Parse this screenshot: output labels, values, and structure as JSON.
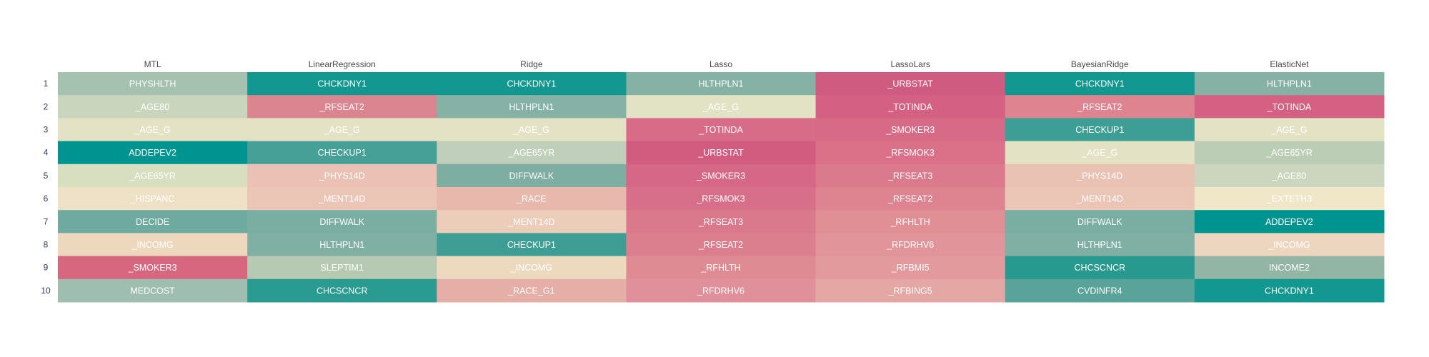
{
  "chart_data": {
    "type": "heatmap",
    "columns": [
      "MTL",
      "LinearRegression",
      "Ridge",
      "Lasso",
      "LassoLars",
      "BayesianRidge",
      "ElasticNet"
    ],
    "rows": [
      "1",
      "2",
      "3",
      "4",
      "5",
      "6",
      "7",
      "8",
      "9",
      "10"
    ],
    "cells": [
      [
        "PHYSHLTH",
        "CHCKDNY1",
        "CHCKDNY1",
        "HLTHPLN1",
        "_URBSTAT",
        "CHCKDNY1",
        "HLTHPLN1"
      ],
      [
        "_AGE80",
        "_RFSEAT2",
        "HLTHPLN1",
        "_AGE_G",
        "_TOTINDA",
        "_RFSEAT2",
        "_TOTINDA"
      ],
      [
        "_AGE_G",
        "_AGE_G",
        "_AGE_G",
        "_TOTINDA",
        "_SMOKER3",
        "CHECKUP1",
        "_AGE_G"
      ],
      [
        "ADDEPEV2",
        "CHECKUP1",
        "_AGE65YR",
        "_URBSTAT",
        "_RFSMOK3",
        "_AGE_G",
        "_AGE65YR"
      ],
      [
        "_AGE65YR",
        "_PHYS14D",
        "DIFFWALK",
        "_SMOKER3",
        "_RFSEAT3",
        "_PHYS14D",
        "_AGE80"
      ],
      [
        "_HISPANC",
        "_MENT14D",
        "_RACE",
        "_RFSMOK3",
        "_RFSEAT2",
        "_MENT14D",
        "_EXTETH3"
      ],
      [
        "DECIDE",
        "DIFFWALK",
        "_MENT14D",
        "_RFSEAT3",
        "_RFHLTH",
        "DIFFWALK",
        "ADDEPEV2"
      ],
      [
        "_INCOMG",
        "HLTHPLN1",
        "CHECKUP1",
        "_RFSEAT2",
        "_RFDRHV6",
        "HLTHPLN1",
        "_INCOMG"
      ],
      [
        "_SMOKER3",
        "SLEPTIM1",
        "_INCOMG",
        "_RFHLTH",
        "_RFBMI5",
        "CHCSCNCR",
        "INCOME2"
      ],
      [
        "MEDCOST",
        "CHCSCNCR",
        "_RACE_G1",
        "_RFDRHV6",
        "_RFBING5",
        "CVDINFR4",
        "CHCKDNY1"
      ]
    ],
    "cell_colors": [
      [
        "#a5c2b0",
        "#139891",
        "#139891",
        "#86b2a5",
        "#cf5b80",
        "#139891",
        "#86b2a5"
      ],
      [
        "#cad5bd",
        "#db8591",
        "#86b2a5",
        "#e2e2c4",
        "#d46183",
        "#dd8490",
        "#d46183"
      ],
      [
        "#e4e2c5",
        "#e4e2c5",
        "#e4e2c5",
        "#d86b88",
        "#d66a87",
        "#3d9e95",
        "#e4e2c5"
      ],
      [
        "#009490",
        "#47a097",
        "#bfcfb9",
        "#d15c80",
        "#da7189",
        "#e4e2c5",
        "#bccdb6"
      ],
      [
        "#d8dfc1",
        "#eac1b4",
        "#7eada1",
        "#d76786",
        "#dc7a8d",
        "#eac2b4",
        "#ccd6be"
      ],
      [
        "#eee1c5",
        "#ebc5b6",
        "#e8b8ad",
        "#d86f8a",
        "#de8390",
        "#ebc6b7",
        "#f0e6c8"
      ],
      [
        "#6eaa9f",
        "#7baea3",
        "#ebcdba",
        "#da788c",
        "#e08f95",
        "#7aaea3",
        "#009490"
      ],
      [
        "#edd8be",
        "#80b0a4",
        "#3e9e95",
        "#db7e8e",
        "#e1959a",
        "#80b0a4",
        "#edd6bf"
      ],
      [
        "#d6677f",
        "#b6c9b2",
        "#ecd9be",
        "#de8b93",
        "#e39a9c",
        "#28998f",
        "#92b5a6"
      ],
      [
        "#9ebfaf",
        "#299b90",
        "#e5aea7",
        "#e0909a",
        "#e5a7a3",
        "#5aa39a",
        "#139891"
      ]
    ]
  }
}
